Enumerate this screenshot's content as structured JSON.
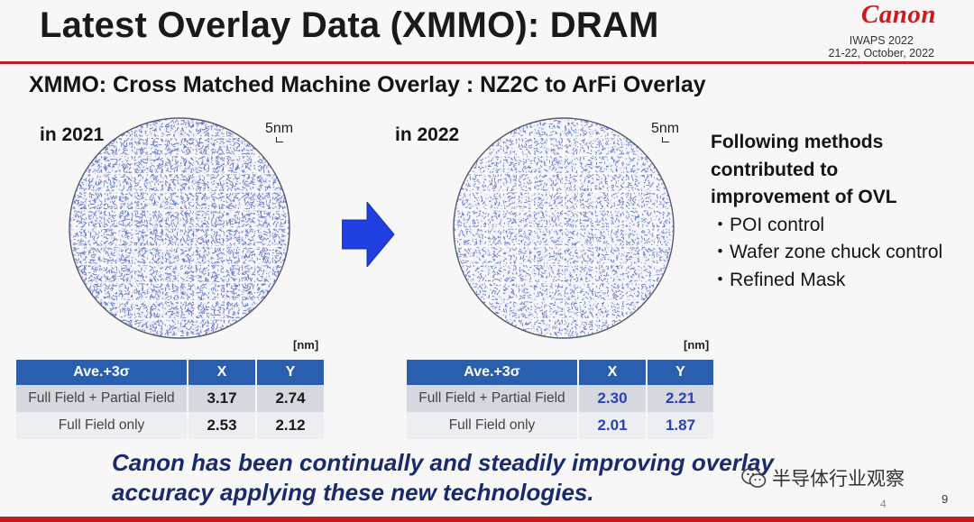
{
  "header": {
    "title": "Latest Overlay Data (XMMO): DRAM",
    "logo": "Canon",
    "conference": "IWAPS 2022",
    "dates": "21-22, October, 2022"
  },
  "subtitle": "XMMO: Cross Matched Machine Overlay :  NZ2C to ArFi Overlay",
  "panels": [
    {
      "year": "in 2021",
      "scale": "5nm",
      "unit": "[nm]",
      "table": {
        "headers": [
          "Ave.+3σ",
          "X",
          "Y"
        ],
        "rows": [
          [
            "Full Field + Partial Field",
            "3.17",
            "2.74"
          ],
          [
            "Full Field only",
            "2.53",
            "2.12"
          ]
        ]
      }
    },
    {
      "year": "in 2022",
      "scale": "5nm",
      "unit": "[nm]",
      "table": {
        "headers": [
          "Ave.+3σ",
          "X",
          "Y"
        ],
        "rows": [
          [
            "Full Field + Partial Field",
            "2.30",
            "2.21"
          ],
          [
            "Full Field only",
            "2.01",
            "1.87"
          ]
        ]
      }
    }
  ],
  "methods": {
    "heading": [
      "Following methods",
      "contributed to",
      "improvement of OVL"
    ],
    "items": [
      "・POI control",
      "・Wafer zone chuck control",
      "・Refined Mask"
    ]
  },
  "conclusion": {
    "line1": "Canon has been continually and steadily improving overlay",
    "line2": "accuracy applying these new technologies."
  },
  "watermark": {
    "text": "半导体行业观察",
    "icon": "wechat-icon"
  },
  "page": {
    "inner": "4",
    "outer": "9"
  },
  "colors": {
    "brand_red": "#c8191e",
    "table_header": "#2a5fb0",
    "vector_blue": "#3a4fb8",
    "conclusion": "#1b2a6b"
  }
}
